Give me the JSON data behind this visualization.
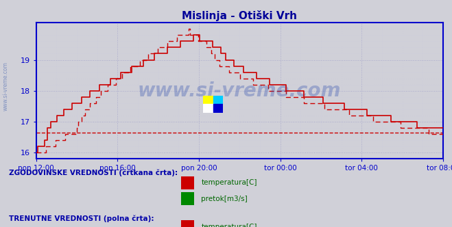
{
  "title": "Mislinja - Otiški Vrh",
  "title_color": "#000099",
  "bg_color": "#d0d0d8",
  "plot_bg_color": "#d0d0d8",
  "grid_color_major": "#aaaacc",
  "grid_color_minor": "#ccccdd",
  "axis_color": "#0000cc",
  "text_color": "#0000aa",
  "legend_text_color": "#006600",
  "watermark": "www.si-vreme.com",
  "xlim": [
    0,
    20
  ],
  "ylim": [
    15.8,
    20.2
  ],
  "yticks": [
    16,
    17,
    18,
    19
  ],
  "xtick_labels": [
    "pon 12:00",
    "pon 16:00",
    "pon 20:00",
    "tor 00:00",
    "tor 04:00",
    "tor 08:00"
  ],
  "xtick_positions": [
    0,
    4,
    8,
    12,
    16,
    20
  ],
  "legend_label1": "ZGODOVINSKE VREDNOSTI (črtkana črta):",
  "legend_label2": "TRENUTNE VREDNOSTI (polna črta):",
  "leg_items": [
    "temperatura[C]",
    "pretok[m3/s]"
  ],
  "solid_color_temp": "#cc0000",
  "solid_color_pretok": "#00aa00",
  "dashed_color_temp": "#cc0000",
  "dashed_color_pretok": "#008800",
  "hline_value": 16.65,
  "hline_color": "#cc0000",
  "n_points": 252
}
